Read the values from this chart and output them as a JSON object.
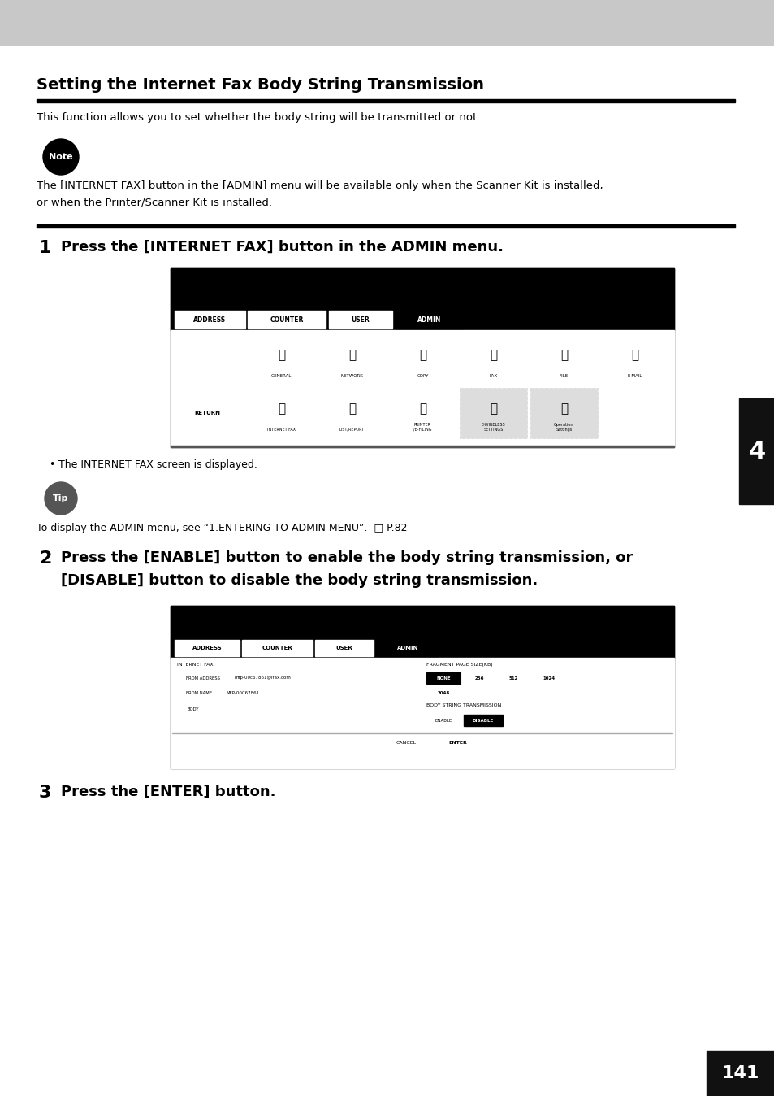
{
  "page_bg": "#ffffff",
  "header_bg": "#c8c8c8",
  "title": "Setting the Internet Fax Body String Transmission",
  "body_text1": "This function allows you to set whether the body string will be transmitted or not.",
  "note_text_line1": "The [INTERNET FAX] button in the [ADMIN] menu will be available only when the Scanner Kit is installed,",
  "note_text_line2": "or when the Printer/Scanner Kit is installed.",
  "step1_text": "Press the [INTERNET FAX] button in the ADMIN menu.",
  "bullet1_text": "The INTERNET FAX screen is displayed.",
  "tip_text": "To display the ADMIN menu, see “1.ENTERING TO ADMIN MENU”.  □ P.82",
  "step2_text_line1": "Press the [ENABLE] button to enable the body string transmission, or",
  "step2_text_line2": "[DISABLE] button to disable the body string transmission.",
  "step3_text": "Press the [ENTER] button.",
  "page_number": "141",
  "tab_label": "4",
  "text_color": "#000000"
}
